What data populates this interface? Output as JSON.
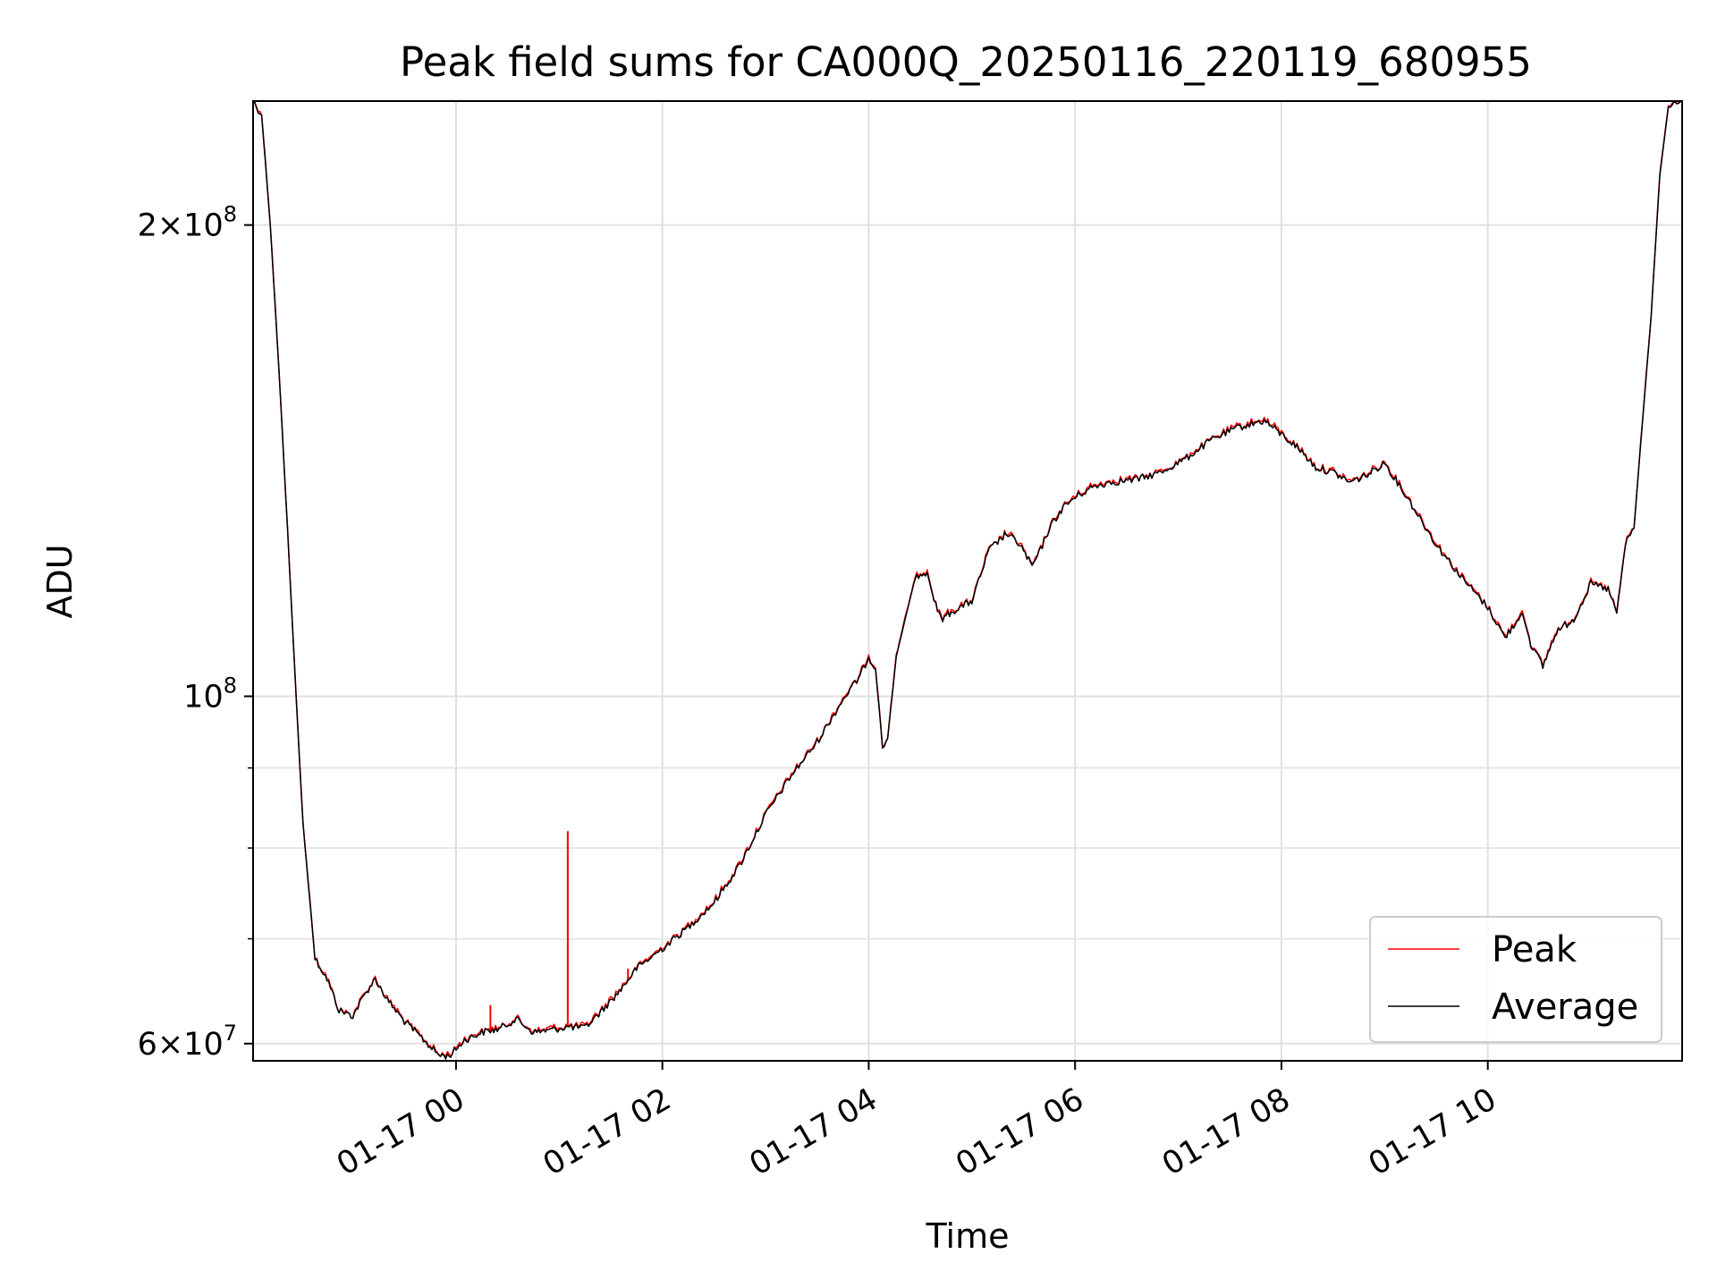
{
  "chart_data": {
    "type": "line",
    "title": "Peak field sums for CA000Q_20250116_220119_680955",
    "xlabel": "Time",
    "ylabel": "ADU",
    "y_scale": "log",
    "ylim": [
      58500000,
      240000000
    ],
    "xlim": [
      "2025-01-16 22:02",
      "2025-01-17 11:53"
    ],
    "grid": true,
    "legend_position": "lower right",
    "x_ticks": [
      {
        "value": "2025-01-17 00:00",
        "label": "01-17 00"
      },
      {
        "value": "2025-01-17 02:00",
        "label": "01-17 02"
      },
      {
        "value": "2025-01-17 04:00",
        "label": "01-17 04"
      },
      {
        "value": "2025-01-17 06:00",
        "label": "01-17 06"
      },
      {
        "value": "2025-01-17 08:00",
        "label": "01-17 08"
      },
      {
        "value": "2025-01-17 10:00",
        "label": "01-17 10"
      }
    ],
    "y_ticks": [
      {
        "value": 60000000,
        "mantissa": "6",
        "exponent": "7"
      },
      {
        "value": 100000000,
        "mantissa": "",
        "exponent": "8"
      },
      {
        "value": 200000000,
        "mantissa": "2",
        "exponent": "8"
      }
    ],
    "y_minor_ticks": [
      70000000,
      80000000,
      90000000
    ],
    "series": [
      {
        "name": "Average",
        "color": "#000000",
        "points": [
          [
            "2025-01-16 22:02",
            240000000
          ],
          [
            "2025-01-16 22:07",
            235000000
          ],
          [
            "2025-01-16 22:12",
            200000000
          ],
          [
            "2025-01-16 22:17",
            162000000
          ],
          [
            "2025-01-16 22:22",
            128000000
          ],
          [
            "2025-01-16 22:27",
            100000000
          ],
          [
            "2025-01-16 22:31",
            83000000
          ],
          [
            "2025-01-16 22:35",
            74000000
          ],
          [
            "2025-01-16 22:38",
            68000000
          ],
          [
            "2025-01-16 22:45",
            66000000
          ],
          [
            "2025-01-16 22:52",
            63000000
          ],
          [
            "2025-01-16 23:00",
            62500000
          ],
          [
            "2025-01-16 23:07",
            64500000
          ],
          [
            "2025-01-16 23:13",
            66000000
          ],
          [
            "2025-01-16 23:20",
            64000000
          ],
          [
            "2025-01-16 23:30",
            62000000
          ],
          [
            "2025-01-16 23:40",
            60500000
          ],
          [
            "2025-01-16 23:50",
            59000000
          ],
          [
            "2025-01-16 23:56",
            58900000
          ],
          [
            "2025-01-17 00:05",
            60300000
          ],
          [
            "2025-01-17 00:15",
            61000000
          ],
          [
            "2025-01-17 00:25",
            61300000
          ],
          [
            "2025-01-17 00:35",
            62200000
          ],
          [
            "2025-01-17 00:45",
            61000000
          ],
          [
            "2025-01-17 00:55",
            61200000
          ],
          [
            "2025-01-17 01:05",
            61500000
          ],
          [
            "2025-01-17 01:15",
            61400000
          ],
          [
            "2025-01-17 01:25",
            63000000
          ],
          [
            "2025-01-17 01:35",
            64800000
          ],
          [
            "2025-01-17 01:45",
            67000000
          ],
          [
            "2025-01-17 02:00",
            69000000
          ],
          [
            "2025-01-17 02:15",
            71200000
          ],
          [
            "2025-01-17 02:30",
            73800000
          ],
          [
            "2025-01-17 02:45",
            78000000
          ],
          [
            "2025-01-17 03:00",
            84000000
          ],
          [
            "2025-01-17 03:15",
            89000000
          ],
          [
            "2025-01-17 03:30",
            93500000
          ],
          [
            "2025-01-17 03:45",
            99500000
          ],
          [
            "2025-01-17 03:55",
            103000000
          ],
          [
            "2025-01-17 04:00",
            106000000
          ],
          [
            "2025-01-17 04:04",
            104000000
          ],
          [
            "2025-01-17 04:08",
            93000000
          ],
          [
            "2025-01-17 04:11",
            94000000
          ],
          [
            "2025-01-17 04:16",
            106000000
          ],
          [
            "2025-01-17 04:22",
            113000000
          ],
          [
            "2025-01-17 04:27",
            119000000
          ],
          [
            "2025-01-17 04:34",
            120000000
          ],
          [
            "2025-01-17 04:38",
            115000000
          ],
          [
            "2025-01-17 04:42",
            112000000
          ],
          [
            "2025-01-17 04:50",
            113500000
          ],
          [
            "2025-01-17 05:00",
            115000000
          ],
          [
            "2025-01-17 05:10",
            124000000
          ],
          [
            "2025-01-17 05:20",
            127000000
          ],
          [
            "2025-01-17 05:28",
            125000000
          ],
          [
            "2025-01-17 05:35",
            121000000
          ],
          [
            "2025-01-17 05:40",
            124000000
          ],
          [
            "2025-01-17 05:45",
            128000000
          ],
          [
            "2025-01-17 05:53",
            132000000
          ],
          [
            "2025-01-17 06:00",
            134000000
          ],
          [
            "2025-01-17 06:10",
            136000000
          ],
          [
            "2025-01-17 06:20",
            137000000
          ],
          [
            "2025-01-17 06:35",
            137500000
          ],
          [
            "2025-01-17 06:50",
            139000000
          ],
          [
            "2025-01-17 07:05",
            142000000
          ],
          [
            "2025-01-17 07:20",
            146000000
          ],
          [
            "2025-01-17 07:35",
            148500000
          ],
          [
            "2025-01-17 07:50",
            150000000
          ],
          [
            "2025-01-17 08:00",
            147000000
          ],
          [
            "2025-01-17 08:10",
            144000000
          ],
          [
            "2025-01-17 08:20",
            140000000
          ],
          [
            "2025-01-17 08:30",
            139000000
          ],
          [
            "2025-01-17 08:40",
            137000000
          ],
          [
            "2025-01-17 08:50",
            138500000
          ],
          [
            "2025-01-17 09:00",
            141000000
          ],
          [
            "2025-01-17 09:15",
            133000000
          ],
          [
            "2025-01-17 09:30",
            125000000
          ],
          [
            "2025-01-17 09:45",
            119000000
          ],
          [
            "2025-01-17 10:00",
            114000000
          ],
          [
            "2025-01-17 10:10",
            109000000
          ],
          [
            "2025-01-17 10:20",
            113000000
          ],
          [
            "2025-01-17 10:25",
            108000000
          ],
          [
            "2025-01-17 10:32",
            104500000
          ],
          [
            "2025-01-17 10:40",
            110000000
          ],
          [
            "2025-01-17 10:50",
            112000000
          ],
          [
            "2025-01-17 11:00",
            118000000
          ],
          [
            "2025-01-17 11:10",
            117000000
          ],
          [
            "2025-01-17 11:15",
            113000000
          ],
          [
            "2025-01-17 11:20",
            125000000
          ],
          [
            "2025-01-17 11:25",
            128000000
          ],
          [
            "2025-01-17 11:30",
            150000000
          ],
          [
            "2025-01-17 11:35",
            175000000
          ],
          [
            "2025-01-17 11:40",
            215000000
          ],
          [
            "2025-01-17 11:45",
            238000000
          ],
          [
            "2025-01-17 11:53",
            240000000
          ]
        ]
      },
      {
        "name": "Peak",
        "color": "#ff0000",
        "spikes": [
          [
            "2025-01-17 01:05",
            82000000
          ],
          [
            "2025-01-17 00:20",
            63500000
          ],
          [
            "2025-01-17 01:40",
            67000000
          ],
          [
            "2025-01-16 23:25",
            62800000
          ]
        ]
      }
    ]
  }
}
